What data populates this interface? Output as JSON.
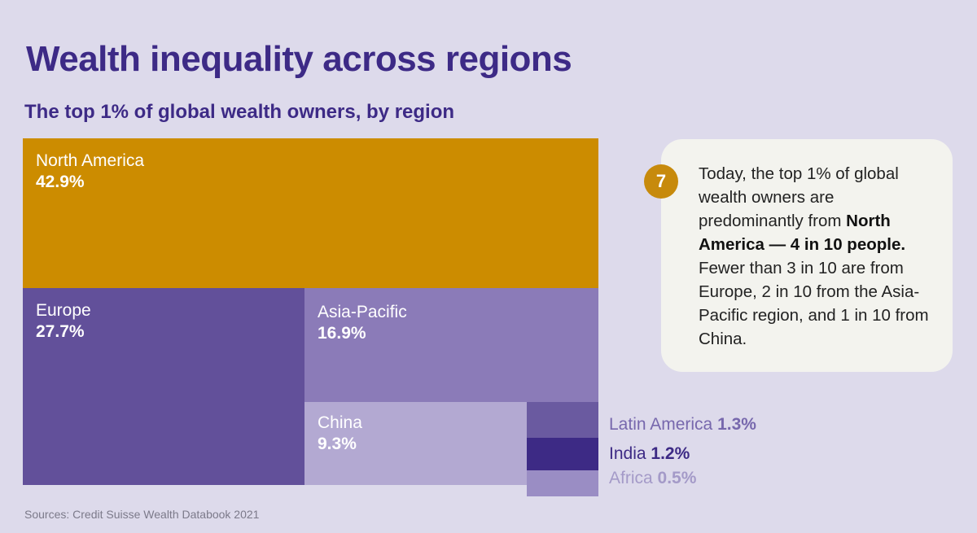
{
  "title": "Wealth inequality across regions",
  "subtitle": "The top 1% of global wealth owners, by region",
  "chart_data": {
    "type": "treemap",
    "title": "Wealth inequality across regions",
    "subtitle": "The top 1% of global wealth owners, by region",
    "categories": [
      "North America",
      "Europe",
      "Asia-Pacific",
      "China",
      "Latin America",
      "India",
      "Africa"
    ],
    "values": [
      42.9,
      27.7,
      16.9,
      9.3,
      1.3,
      1.2,
      0.5
    ],
    "labels": [
      "42.9%",
      "27.7%",
      "16.9%",
      "9.3%",
      "1.3%",
      "1.2%",
      "0.5%"
    ],
    "colors": [
      "#cc8c00",
      "#62509a",
      "#8b7bb8",
      "#b3a9d2",
      "#6a5aa0",
      "#3d2a85",
      "#9a8dc4"
    ]
  },
  "callout": {
    "number": "7",
    "text_pre": "Today, the top 1% of global wealth owners are predominantly from ",
    "text_bold": "North America — 4 in 10 people.",
    "text_post": " Fewer than 3 in 10 are from Europe, 2 in 10 from the Asia-Pacific region, and 1 in 10 from China."
  },
  "source": "Sources: Credit Suisse Wealth Databook 2021"
}
